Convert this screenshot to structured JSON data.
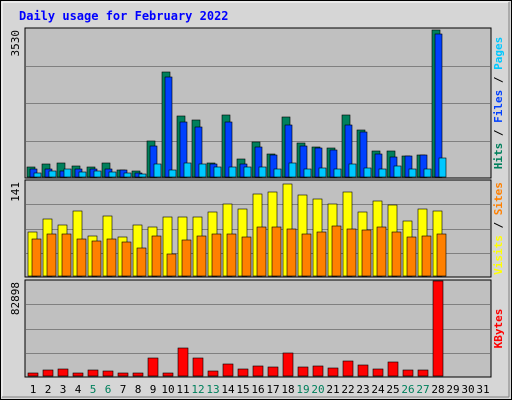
{
  "chart_data": {
    "type": "bar",
    "title": "Daily usage for February 2022",
    "days": [
      "1",
      "2",
      "3",
      "4",
      "5",
      "6",
      "7",
      "8",
      "9",
      "10",
      "11",
      "12",
      "13",
      "14",
      "15",
      "16",
      "17",
      "18",
      "19",
      "20",
      "21",
      "22",
      "23",
      "24",
      "25",
      "26",
      "27",
      "28",
      "29",
      "30",
      "31"
    ],
    "weekend_days": [
      5,
      6,
      12,
      13,
      19,
      20,
      26,
      27
    ],
    "colors": {
      "hits": "#00805c",
      "files": "#0040ff",
      "pages": "#00c8ff",
      "visits": "#ffff00",
      "sites": "#ff8000",
      "kbytes": "#ff0000",
      "weekday_label": "#000000",
      "weekend_label": "#00805c",
      "title": "#0000ff",
      "plot_bg": "#c0c0c0",
      "frame_bg": "#d6d6d6"
    },
    "panels": [
      {
        "id": "top",
        "ymax": 3530,
        "ymax_label": "3530",
        "legend": [
          {
            "text": "Hits",
            "color": "#00805c"
          },
          {
            "text": " / ",
            "color": "#000000"
          },
          {
            "text": "Files",
            "color": "#0040ff"
          },
          {
            "text": " / ",
            "color": "#000000"
          },
          {
            "text": "Pages",
            "color": "#00c8ff"
          }
        ],
        "series": [
          {
            "name": "Hits",
            "color": "#00805c",
            "values": [
              240,
              300,
              330,
              260,
              240,
              340,
              170,
              140,
              860,
              2500,
              1450,
              1350,
              330,
              1470,
              440,
              830,
              540,
              1440,
              800,
              720,
              700,
              1470,
              1130,
              620,
              620,
              510,
              520,
              3500,
              0,
              0,
              0
            ]
          },
          {
            "name": "Files",
            "color": "#0040ff",
            "values": [
              200,
              200,
              150,
              200,
              180,
              200,
              160,
              100,
              730,
              2380,
              1310,
              1190,
              300,
              1310,
              320,
              720,
              520,
              1230,
              730,
              700,
              650,
              1250,
              1070,
              540,
              470,
              500,
              520,
              3400,
              0,
              0,
              0
            ]
          },
          {
            "name": "Pages",
            "color": "#00c8ff",
            "values": [
              100,
              140,
              200,
              120,
              140,
              130,
              100,
              80,
              320,
              170,
              330,
              310,
              240,
              230,
              250,
              240,
              190,
              340,
              200,
              220,
              190,
              320,
              220,
              180,
              270,
              190,
              190,
              460,
              0,
              0,
              0
            ]
          }
        ]
      },
      {
        "id": "middle",
        "ymax": 141,
        "ymax_label": "141",
        "legend": [
          {
            "text": "Visits",
            "color": "#ffff00"
          },
          {
            "text": " / ",
            "color": "#000000"
          },
          {
            "text": "Sites",
            "color": "#ff8000"
          }
        ],
        "series": [
          {
            "name": "Visits",
            "color": "#ffff00",
            "values": [
              65,
              85,
              75,
              97,
              60,
              89,
              58,
              75,
              73,
              87,
              88,
              87,
              95,
              107,
              99,
              122,
              124,
              136,
              120,
              114,
              107,
              124,
              95,
              112,
              106,
              81,
              99,
              96,
              0,
              0,
              0
            ]
          },
          {
            "name": "Sites",
            "color": "#ff8000",
            "values": [
              55,
              62,
              62,
              55,
              52,
              55,
              50,
              41,
              60,
              32,
              53,
              60,
              62,
              62,
              58,
              72,
              72,
              70,
              62,
              66,
              74,
              70,
              68,
              72,
              66,
              58,
              60,
              63,
              0,
              0,
              0
            ]
          }
        ]
      },
      {
        "id": "bottom",
        "ymax": 82898,
        "ymax_label": "82898",
        "legend": [
          {
            "text": "KBytes",
            "color": "#ff0000"
          }
        ],
        "series": [
          {
            "name": "KBytes",
            "color": "#ff0000",
            "values": [
              2500,
              5000,
              6000,
              3000,
              5500,
              4500,
              2500,
              2500,
              16000,
              2500,
              24000,
              16000,
              4500,
              10500,
              6500,
              8500,
              8000,
              20500,
              7500,
              8500,
              7000,
              13500,
              10000,
              6000,
              12500,
              5000,
              5500,
              82898,
              0,
              0,
              0
            ]
          }
        ]
      }
    ]
  }
}
